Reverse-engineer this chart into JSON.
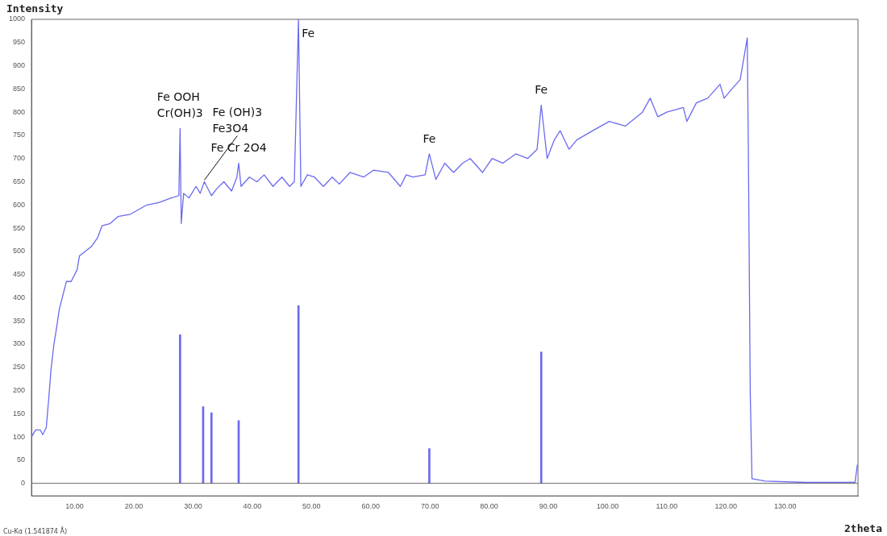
{
  "chart_data": {
    "type": "line",
    "xlabel": "2theta",
    "ylabel": "Intensity",
    "xlim": [
      2.7,
      142.3
    ],
    "ylim": [
      -27,
      1000
    ],
    "xticks": [
      {
        "value": 10,
        "label": "10.00"
      },
      {
        "value": 20,
        "label": "20.00"
      },
      {
        "value": 30,
        "label": "30.00"
      },
      {
        "value": 40,
        "label": "40.00"
      },
      {
        "value": 50,
        "label": "50.00"
      },
      {
        "value": 60,
        "label": "60.00"
      },
      {
        "value": 70,
        "label": "70.00"
      },
      {
        "value": 80,
        "label": "80.00"
      },
      {
        "value": 90,
        "label": "90.00"
      },
      {
        "value": 100,
        "label": "100.00"
      },
      {
        "value": 110,
        "label": "110.00"
      },
      {
        "value": 120,
        "label": "120.00"
      },
      {
        "value": 130,
        "label": "130.00"
      }
    ],
    "yticks": [
      0,
      50,
      100,
      150,
      200,
      250,
      300,
      350,
      400,
      450,
      500,
      550,
      600,
      650,
      700,
      750,
      800,
      850,
      900,
      950,
      1000
    ],
    "grid": false,
    "ref_lines": [
      {
        "axis": "y",
        "value": 0,
        "color": "#666666"
      }
    ],
    "legend": false,
    "marker": "none",
    "line_style": "solid",
    "series": [
      {
        "color": "#6a6af0",
        "x": [
          2.7,
          3.4,
          4.2,
          4.6,
          5.2,
          5.6,
          6.0,
          6.5,
          7.0,
          7.4,
          7.9,
          8.6,
          9.4,
          10.4,
          10.8,
          11.8,
          12.8,
          13.9,
          14.6,
          16.0,
          17.3,
          19.4,
          20.8,
          22.2,
          24.2,
          26.3,
          27.6,
          27.8,
          28.0,
          28.4,
          29.3,
          30.5,
          31.2,
          31.9,
          33.1,
          34.0,
          35.2,
          36.5,
          37.4,
          37.7,
          38.1,
          39.5,
          40.8,
          42.0,
          43.5,
          45.0,
          46.3,
          47.1,
          47.8,
          48.2,
          49.3,
          50.5,
          52.0,
          53.5,
          54.7,
          56.5,
          58.8,
          60.5,
          63.0,
          65.0,
          66.0,
          67.1,
          69.2,
          69.9,
          71.0,
          72.5,
          74.0,
          75.5,
          76.8,
          78.9,
          80.5,
          82.3,
          84.5,
          86.5,
          88.1,
          88.8,
          89.8,
          91.0,
          92.0,
          93.5,
          94.8,
          97.5,
          100.3,
          103.0,
          105.9,
          107.2,
          108.5,
          110.0,
          112.8,
          113.4,
          115.0,
          116.9,
          119.0,
          119.7,
          121.0,
          122.4,
          123.6,
          123.8,
          124.1,
          124.4,
          126.6,
          133.5,
          141.8,
          142.2
        ],
        "values": [
          100,
          115,
          115,
          105,
          120,
          180,
          245,
          300,
          340,
          375,
          400,
          435,
          435,
          460,
          490,
          500,
          510,
          530,
          555,
          560,
          575,
          580,
          590,
          600,
          605,
          615,
          620,
          765,
          560,
          625,
          615,
          640,
          625,
          650,
          620,
          635,
          650,
          630,
          660,
          690,
          640,
          660,
          650,
          665,
          640,
          660,
          640,
          650,
          1000,
          640,
          665,
          660,
          640,
          660,
          645,
          670,
          660,
          675,
          670,
          640,
          665,
          660,
          665,
          710,
          655,
          690,
          670,
          690,
          700,
          670,
          700,
          690,
          710,
          700,
          720,
          815,
          700,
          740,
          760,
          720,
          740,
          760,
          780,
          770,
          800,
          830,
          790,
          800,
          810,
          780,
          820,
          830,
          860,
          830,
          850,
          870,
          960,
          700,
          200,
          10,
          5,
          2,
          2,
          40
        ]
      },
      {
        "type": "bar",
        "color": "#6a6af0",
        "x": [
          27.8,
          31.7,
          33.1,
          37.7,
          47.8,
          69.9,
          88.8
        ],
        "values": [
          320,
          165,
          152,
          135,
          383,
          75,
          283
        ]
      }
    ],
    "annotations": [
      {
        "text": "Fe OOH\nCr(OH)3",
        "x": 27.8,
        "y": 765
      },
      {
        "text": "Fe Cr 2O4",
        "x": 37.7,
        "y": 690
      },
      {
        "text": "Fe (OH)3\nFe3O4",
        "x": 31.9,
        "y": 650
      },
      {
        "text": "Fe",
        "x": 47.8,
        "y": 1000
      },
      {
        "text": "Fe",
        "x": 69.9,
        "y": 710
      },
      {
        "text": "Fe",
        "x": 88.8,
        "y": 815
      },
      "Cu-Kα (1.541874 Å)"
    ]
  }
}
